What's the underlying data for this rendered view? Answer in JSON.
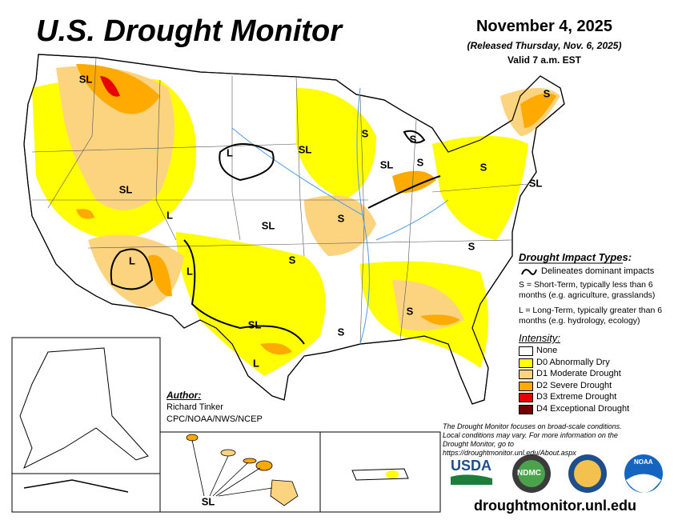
{
  "header": {
    "title": "U.S. Drought Monitor",
    "date": "November 4, 2025",
    "released": "(Released Thursday, Nov. 6, 2025)",
    "valid": "Valid 7 a.m. EST"
  },
  "map_labels": [
    "SL",
    "SL",
    "L",
    "L",
    "L",
    "L",
    "SL",
    "SL",
    "S",
    "S",
    "SL",
    "S",
    "S",
    "S",
    "SL",
    "L",
    "S",
    "S",
    "S",
    "S",
    "S",
    "SL",
    "SL"
  ],
  "legend": {
    "impact_title": "Drought Impact Types:",
    "delineates": "Delineates dominant impacts",
    "short_term": "S = Short-Term, typically less than 6 months (e.g. agriculture, grasslands)",
    "long_term": "L = Long-Term, typically greater than 6 months (e.g. hydrology, ecology)",
    "intensity_title": "Intensity:",
    "intensity": [
      {
        "label": "None",
        "color": "#ffffff"
      },
      {
        "label": "D0 Abnormally Dry",
        "color": "#ffff00"
      },
      {
        "label": "D1 Moderate Drought",
        "color": "#fcd37f"
      },
      {
        "label": "D2 Severe Drought",
        "color": "#ffaa00"
      },
      {
        "label": "D3 Extreme Drought",
        "color": "#e60000"
      },
      {
        "label": "D4 Exceptional Drought",
        "color": "#730000"
      }
    ]
  },
  "author": {
    "heading": "Author:",
    "name": "Richard Tinker",
    "org": "CPC/NOAA/NWS/NCEP"
  },
  "disclaimer": "The Drought Monitor focuses on broad-scale conditions. Local conditions may vary. For more information on the Drought Monitor, go to https://droughtmonitor.unl.edu/About.aspx",
  "logos": [
    "USDA",
    "NDMC",
    "NOAA"
  ],
  "url": "droughtmonitor.unl.edu"
}
